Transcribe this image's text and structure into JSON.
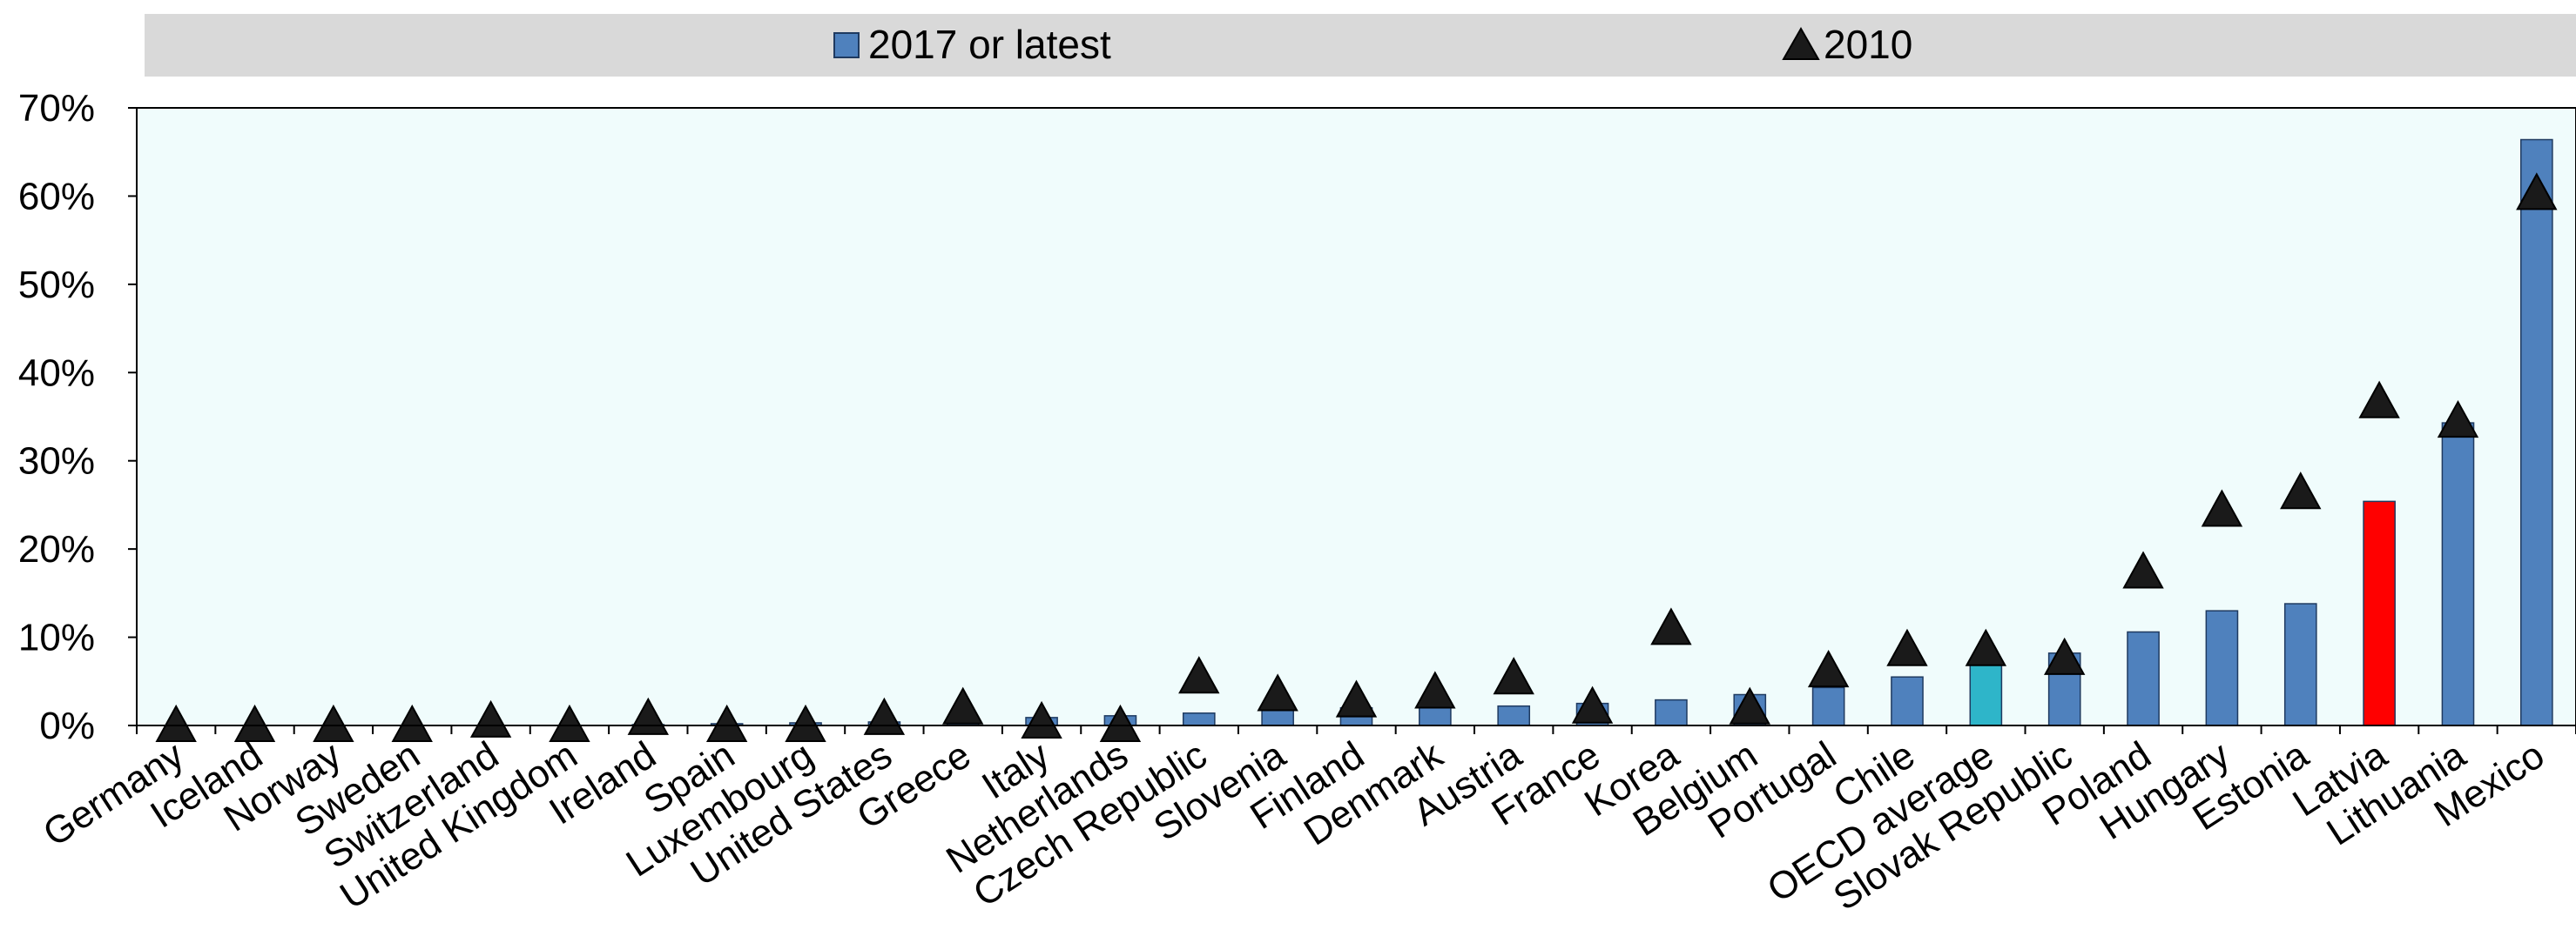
{
  "chart_data": {
    "type": "bar",
    "categories": [
      "Germany",
      "Iceland",
      "Norway",
      "Sweden",
      "Switzerland",
      "United Kingdom",
      "Ireland",
      "Spain",
      "Luxembourg",
      "United States",
      "Greece",
      "Italy",
      "Netherlands",
      "Czech Republic",
      "Slovenia",
      "Finland",
      "Denmark",
      "Austria",
      "France",
      "Korea",
      "Belgium",
      "Portugal",
      "Chile",
      "OECD average",
      "Slovak Republic",
      "Poland",
      "Hungary",
      "Estonia",
      "Latvia",
      "Lithuania",
      "Mexico"
    ],
    "series": [
      {
        "name": "2017 or latest",
        "marker": "bar",
        "color": "#4f81bd",
        "values": [
          0.0,
          0.0,
          0.0,
          0.0,
          0.0,
          0.0,
          0.1,
          0.2,
          0.3,
          0.4,
          0.6,
          0.9,
          1.1,
          1.4,
          1.7,
          2.0,
          2.1,
          2.2,
          2.5,
          2.9,
          3.5,
          4.3,
          5.5,
          7.0,
          8.2,
          10.6,
          13.0,
          13.8,
          25.4,
          34.3,
          66.4
        ]
      },
      {
        "name": "2010",
        "marker": "triangle",
        "color": "#1a1a1a",
        "values": [
          0.0,
          0.0,
          0.0,
          0.0,
          0.5,
          0.0,
          0.8,
          0.0,
          0.0,
          0.8,
          2.0,
          0.4,
          0.0,
          5.5,
          3.5,
          2.8,
          3.8,
          5.4,
          2.1,
          11.0,
          2.0,
          6.2,
          8.6,
          8.6,
          7.6,
          17.4,
          24.4,
          26.4,
          36.7,
          34.5,
          60.3
        ]
      }
    ],
    "highlight_colors": {
      "OECD average": "#2eb5c9",
      "Latvia": "#ff0000"
    },
    "y_ticks": [
      "0%",
      "10%",
      "20%",
      "30%",
      "40%",
      "50%",
      "60%",
      "70%"
    ],
    "ylim": [
      0,
      70
    ],
    "legend_position": "top",
    "plot_background": "#f0fcfc",
    "legend_background": "#d9d9d9",
    "title": "",
    "xlabel": "",
    "ylabel": ""
  }
}
